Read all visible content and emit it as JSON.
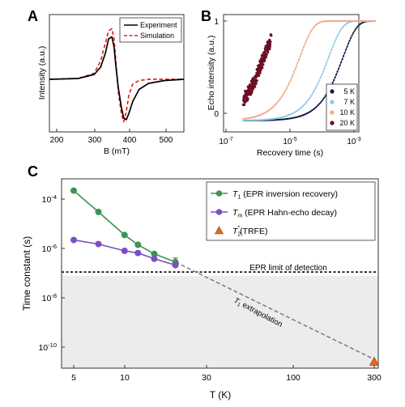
{
  "panels": {
    "a": {
      "letter": "A",
      "xlabel": "B (mT)",
      "ylabel": "Intensity (a.u.)",
      "xticks": [
        "200",
        "300",
        "400",
        "500"
      ],
      "legend": [
        "Experiment",
        "Simulation"
      ]
    },
    "b": {
      "letter": "B",
      "xlabel": "Recovery time (s)",
      "ylabel": "Echo intensity (a.u.)",
      "yticks": [
        "0",
        "1"
      ],
      "legend": [
        "5 K",
        "7 K",
        "10 K",
        "20 K"
      ]
    },
    "c": {
      "letter": "C",
      "xlabel": "T (K)",
      "ylabel": "Time constant (s)",
      "xticks": [
        "5",
        "10",
        "30",
        "100",
        "300"
      ],
      "legend": [
        {
          "sym": "T",
          "sub": "1",
          "text": " (EPR inversion recovery)"
        },
        {
          "sym": "T",
          "sub": "m",
          "text": " (EPR Hahn-echo decay)"
        },
        {
          "sym": "T",
          "sub": "2",
          "sup": "*",
          "text": "(TRFE)"
        }
      ],
      "limit_label": "EPR limit of detection",
      "extrapolation_label": {
        "sym": "T",
        "sub": "1",
        "text": " extrapolation"
      }
    }
  },
  "chart_data": [
    {
      "type": "line",
      "panel": "A",
      "xlabel": "B (mT)",
      "ylabel": "Intensity (a.u.)",
      "xlim": [
        160,
        580
      ],
      "ylim": [
        -1.3,
        1.6
      ],
      "series": [
        {
          "name": "Experiment",
          "color": "#000000",
          "style": "solid",
          "x": [
            160,
            250,
            300,
            320,
            335,
            345,
            355,
            362,
            368,
            375,
            385,
            392,
            400,
            408,
            420,
            440,
            470,
            520,
            580
          ],
          "y": [
            0.0,
            0.02,
            0.12,
            0.3,
            0.65,
            1.0,
            1.05,
            0.8,
            0.3,
            -0.2,
            -0.7,
            -0.95,
            -1.0,
            -0.85,
            -0.55,
            -0.25,
            -0.1,
            -0.03,
            0.0
          ]
        },
        {
          "name": "Simulation",
          "color": "#e8211d",
          "style": "dashed",
          "x": [
            160,
            250,
            300,
            320,
            335,
            345,
            355,
            362,
            368,
            375,
            385,
            392,
            400,
            408,
            420,
            440,
            470,
            520,
            580
          ],
          "y": [
            0.0,
            0.02,
            0.15,
            0.45,
            0.9,
            1.2,
            1.25,
            1.0,
            0.4,
            -0.3,
            -0.85,
            -1.05,
            -0.8,
            -0.4,
            -0.12,
            -0.03,
            0.0,
            0.0,
            0.0
          ]
        }
      ]
    },
    {
      "type": "scatter",
      "panel": "B",
      "xlabel": "Recovery time (s)",
      "ylabel": "Echo intensity (a.u.)",
      "x_scale": "log",
      "xlim": [
        1e-07,
        0.005
      ],
      "ylim": [
        -0.1,
        1.02
      ],
      "series": [
        {
          "name": "5 K",
          "color": "#0d1b4a",
          "T1": 0.00045,
          "x0": 3.5e-07,
          "x1": 0.0045
        },
        {
          "name": "7 K",
          "color": "#8fcbe3",
          "T1": 0.00016,
          "x0": 3.5e-07,
          "x1": 0.0045
        },
        {
          "name": "10 K",
          "color": "#f2a98a",
          "T1": 2e-05,
          "x0": 3.5e-07,
          "x1": 0.0045
        },
        {
          "name": "20 K",
          "color": "#6a0f25",
          "T1": 1.5e-06,
          "x0": 3.5e-07,
          "x1": 2.5e-06
        }
      ]
    },
    {
      "type": "line",
      "panel": "C",
      "xlabel": "T (K)",
      "ylabel": "Time constant (s)",
      "x_scale": "log",
      "y_scale": "log",
      "xlim": [
        4.5,
        300
      ],
      "ylim": [
        5e-12,
        0.001
      ],
      "series": [
        {
          "name": "T1 (EPR inversion recovery)",
          "color": "#3d9451",
          "marker": "circle",
          "x": [
            5,
            7,
            10,
            12,
            15,
            20
          ],
          "y": [
            0.00022,
            3e-05,
            3.5e-06,
            1.4e-06,
            6e-07,
            2.8e-07
          ],
          "yerr_hi": [
            0,
            0,
            0,
            0,
            0,
            1.3e-07
          ]
        },
        {
          "name": "Tm (EPR Hahn-echo decay)",
          "color": "#7b4fc4",
          "marker": "circle",
          "x": [
            5,
            7,
            10,
            12,
            15,
            20
          ],
          "y": [
            2.2e-06,
            1.5e-06,
            8e-07,
            6.5e-07,
            3.8e-07,
            2.1e-07
          ]
        },
        {
          "name": "T2* (TRFE)",
          "color": "#e8681a",
          "marker": "triangle",
          "x": [
            300
          ],
          "y": [
            2.5e-11
          ]
        }
      ],
      "lines": [
        {
          "name": "EPR limit of detection",
          "y": 1.1e-07,
          "style": "dashed",
          "color": "#000000"
        },
        {
          "name": "T1 extrapolation",
          "x": [
            20,
            300
          ],
          "y": [
            2.8e-07,
            3.2e-11
          ],
          "style": "dashed",
          "color": "#7a7a7a"
        }
      ]
    }
  ]
}
